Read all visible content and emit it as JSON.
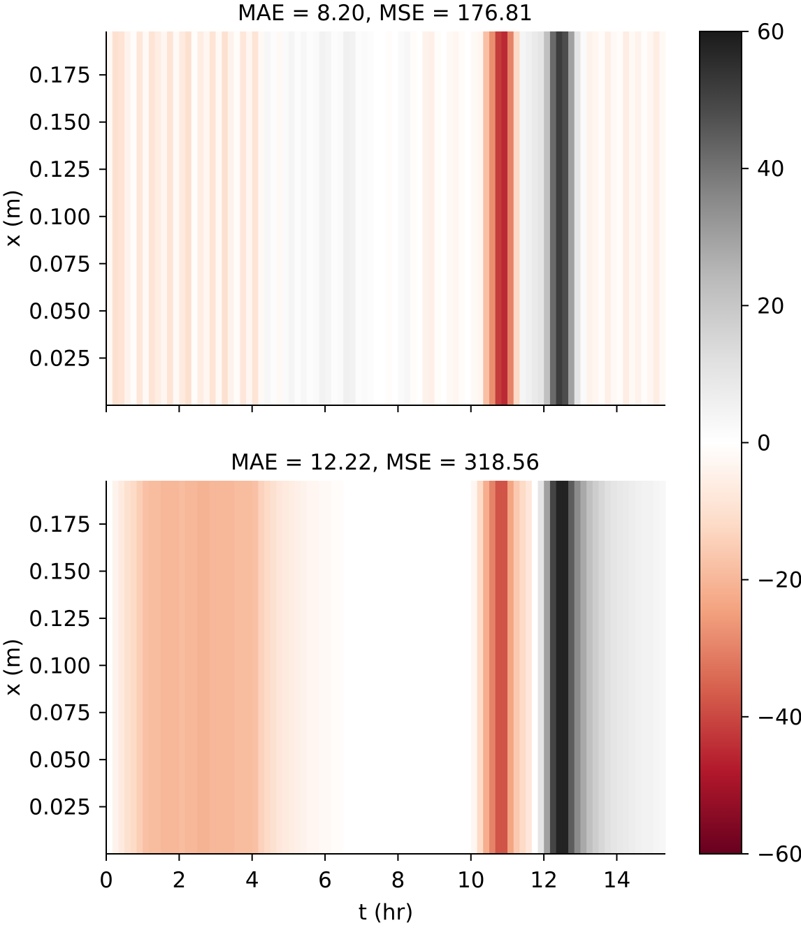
{
  "chart_data": [
    {
      "type": "heatmap",
      "title": "MAE = 8.20, MSE = 176.81",
      "xlabel": "",
      "ylabel": "x (m)",
      "xlim": [
        0,
        15.333
      ],
      "ylim": [
        0,
        0.198
      ],
      "x_step_hr": 0.1667,
      "xticks": [
        0,
        2,
        4,
        6,
        8,
        10,
        12,
        14
      ],
      "xtick_labels_visible": false,
      "yticks": [
        "0.025",
        "0.050",
        "0.075",
        "0.100",
        "0.125",
        "0.150",
        "0.175"
      ],
      "column_values": [
        -2,
        -10,
        -9,
        -4,
        -1,
        -8,
        -2,
        -9,
        -6,
        -3,
        -9,
        -2,
        -7,
        -10,
        -1,
        -6,
        -3,
        -9,
        -2,
        -10,
        -4,
        -1,
        -8,
        -3,
        -9,
        -2,
        3,
        1,
        -2,
        2,
        4,
        1,
        3,
        1,
        2,
        5,
        4,
        1,
        2,
        6,
        5,
        1,
        2,
        1,
        0,
        0,
        -1,
        0,
        2,
        3,
        -1,
        0,
        -4,
        -5,
        -1,
        0,
        -2,
        -3,
        -1,
        0,
        -2,
        -3,
        -18,
        -28,
        -42,
        -45,
        -30,
        -12,
        4,
        6,
        8,
        10,
        22,
        42,
        52,
        48,
        30,
        10,
        2,
        -4,
        -3,
        -1,
        -5,
        -2,
        -1,
        -6,
        -2,
        -4,
        -1,
        -3,
        -6,
        -2
      ]
    },
    {
      "type": "heatmap",
      "title": "MAE = 12.22, MSE = 318.56",
      "xlabel": "t (hr)",
      "ylabel": "x (m)",
      "xlim": [
        0,
        15.333
      ],
      "ylim": [
        0,
        0.198
      ],
      "x_step_hr": 0.1667,
      "xticks": [
        0,
        2,
        4,
        6,
        8,
        10,
        12,
        14
      ],
      "xtick_labels_visible": true,
      "yticks": [
        "0.025",
        "0.050",
        "0.075",
        "0.100",
        "0.125",
        "0.150",
        "0.175"
      ],
      "column_values": [
        0,
        -4,
        -7,
        -10,
        -12,
        -15,
        -18,
        -19,
        -19,
        -20,
        -20,
        -20,
        -19,
        -20,
        -20,
        -21,
        -21,
        -20,
        -20,
        -20,
        -20,
        -19,
        -19,
        -19,
        -18,
        -14,
        -12,
        -10,
        -8,
        -7,
        -6,
        -5,
        -4,
        -3,
        -3,
        -2,
        -2,
        -1,
        -1,
        0,
        0,
        0,
        0,
        0,
        0,
        0,
        0,
        0,
        0,
        0,
        0,
        0,
        0,
        0,
        0,
        0,
        0,
        0,
        0,
        0,
        -3,
        -12,
        -22,
        -30,
        -38,
        -38,
        -24,
        -16,
        -12,
        -8,
        0,
        10,
        30,
        50,
        58,
        58,
        45,
        35,
        28,
        22,
        18,
        15,
        12,
        10,
        9,
        8,
        7,
        6,
        5,
        5,
        4,
        3
      ]
    }
  ],
  "colorbar": {
    "range": [
      -60,
      60
    ],
    "ticks": [
      "60",
      "40",
      "20",
      "0",
      "−20",
      "−40",
      "−60"
    ],
    "tick_values": [
      60,
      40,
      20,
      0,
      -20,
      -40,
      -60
    ],
    "colormap_stops": [
      "#67001f",
      "#b2182b",
      "#d6604d",
      "#f4a582",
      "#fddbc7",
      "#ffffff",
      "#e0e0e0",
      "#bababa",
      "#878787",
      "#4d4d4d",
      "#1a1a1a"
    ]
  }
}
